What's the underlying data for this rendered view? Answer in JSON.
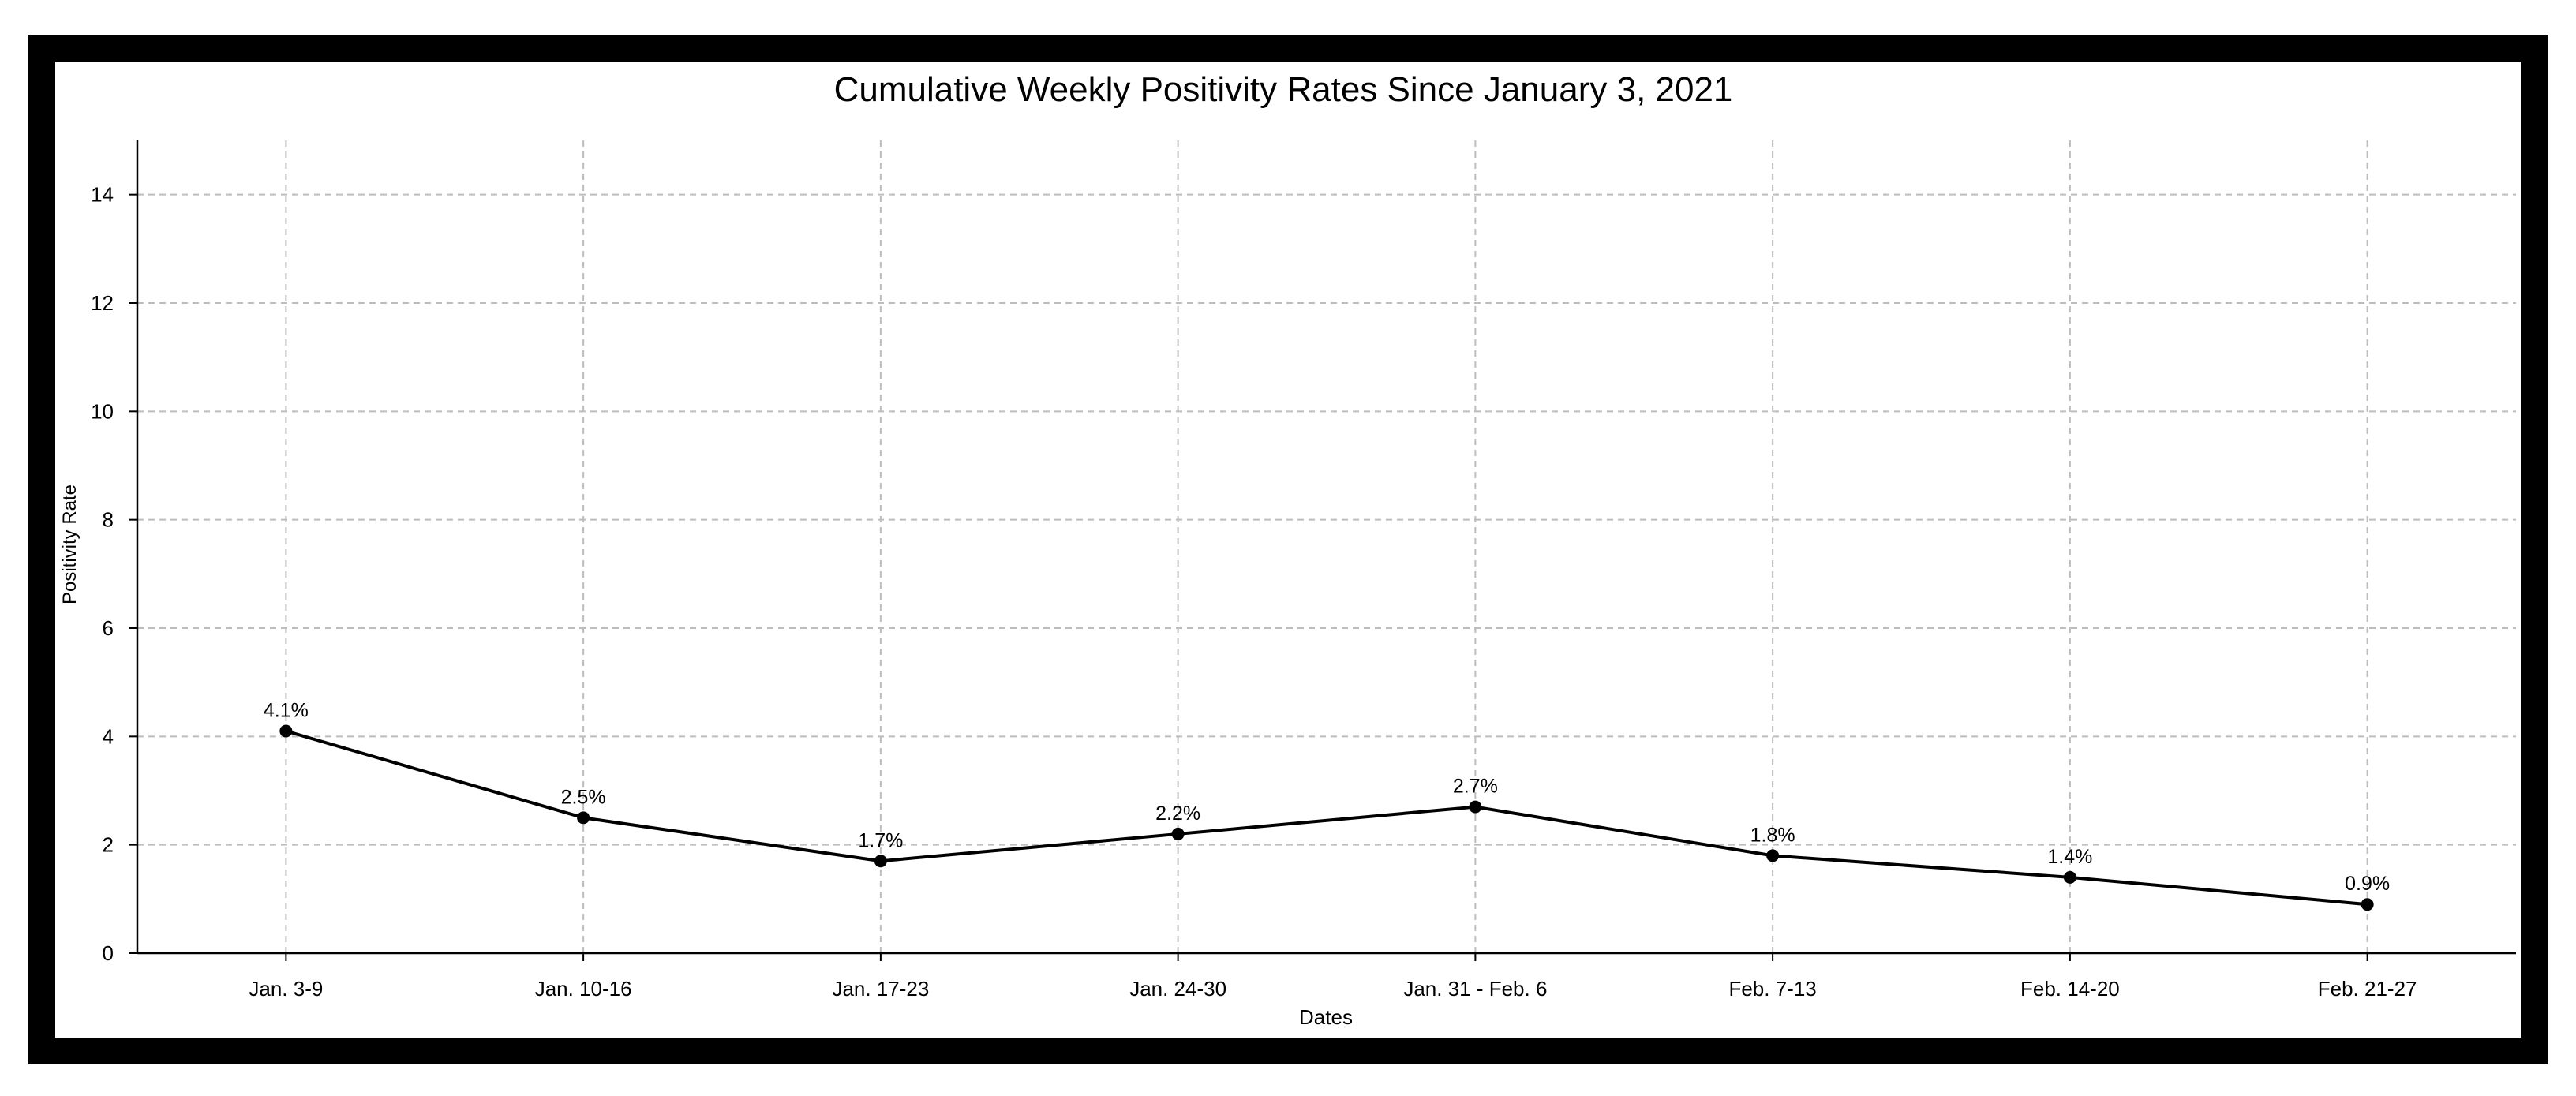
{
  "chart_data": {
    "type": "line",
    "title": "Cumulative Weekly Positivity Rates Since January 3, 2021",
    "xlabel": "Dates",
    "ylabel": "Positivity Rate",
    "categories": [
      "Jan. 3-9",
      "Jan. 10-16",
      "Jan. 17-23",
      "Jan. 24-30",
      "Jan. 31 - Feb. 6",
      "Feb. 7-13",
      "Feb. 14-20",
      "Feb. 21-27"
    ],
    "series": [
      {
        "values": [
          4.1,
          2.5,
          1.7,
          2.2,
          2.7,
          1.8,
          1.4,
          0.9
        ],
        "labels": [
          "4.1%",
          "2.5%",
          "1.7%",
          "2.2%",
          "2.7%",
          "1.8%",
          "1.4%",
          "0.9%"
        ],
        "color": "#000000"
      }
    ],
    "ylim": [
      0,
      15
    ],
    "yticks": [
      0,
      2,
      4,
      6,
      8,
      10,
      12,
      14
    ],
    "grid": true,
    "legend": "none"
  }
}
